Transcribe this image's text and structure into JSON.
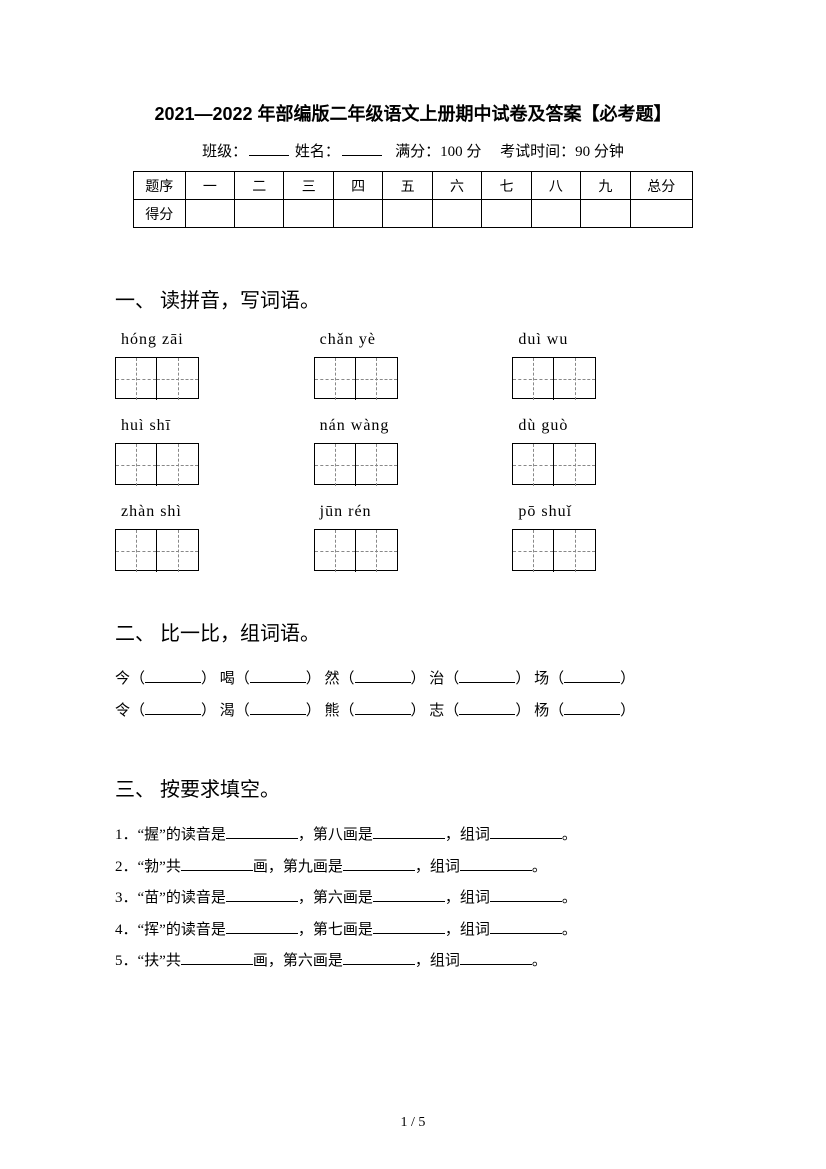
{
  "title": "2021—2022 年部编版二年级语文上册期中试卷及答案【必考题】",
  "meta": {
    "class_label": "班级：",
    "name_label": "姓名：",
    "score_label": "满分：100 分",
    "time_label": "考试时间：90 分钟"
  },
  "score_table": {
    "row1_label": "题序",
    "cols": [
      "一",
      "二",
      "三",
      "四",
      "五",
      "六",
      "七",
      "八",
      "九",
      "总分"
    ],
    "row2_label": "得分"
  },
  "section1": {
    "heading": "一、 读拼音，写词语。",
    "rows": [
      [
        "hóng  zāi",
        "chǎn  yè",
        "duì  wu"
      ],
      [
        "huì  shī",
        "nán  wàng",
        "dù  guò"
      ],
      [
        "zhàn  shì",
        "jūn  rén",
        "pō  shuǐ"
      ]
    ]
  },
  "section2": {
    "heading": "二、 比一比，组词语。",
    "line1": {
      "c1": "今（",
      "c2": "） 喝（",
      "c3": "） 然（",
      "c4": "） 治（",
      "c5": "） 场（",
      "c6": "）"
    },
    "line2": {
      "c1": "令（",
      "c2": "） 渴（",
      "c3": "） 熊（",
      "c4": "） 志（",
      "c5": "） 杨（",
      "c6": "）"
    }
  },
  "section3": {
    "heading": "三、 按要求填空。",
    "items": [
      {
        "pre": "1．“握”的读音是",
        "mid1": "，第八画是",
        "mid2": "，组词",
        "end": "。"
      },
      {
        "pre": "2．“勃”共",
        "mid1": "画，第九画是",
        "mid2": "，组词",
        "end": "。"
      },
      {
        "pre": "3．“苗”的读音是",
        "mid1": "，第六画是",
        "mid2": "，组词",
        "end": "。"
      },
      {
        "pre": "4．“挥”的读音是",
        "mid1": "，第七画是",
        "mid2": "，组词",
        "end": "。"
      },
      {
        "pre": "5．“扶”共",
        "mid1": "画，第六画是",
        "mid2": "，组词",
        "end": "。"
      }
    ]
  },
  "page_num": "1 / 5",
  "colors": {
    "text": "#000000",
    "bg": "#ffffff",
    "dash": "#888888"
  }
}
